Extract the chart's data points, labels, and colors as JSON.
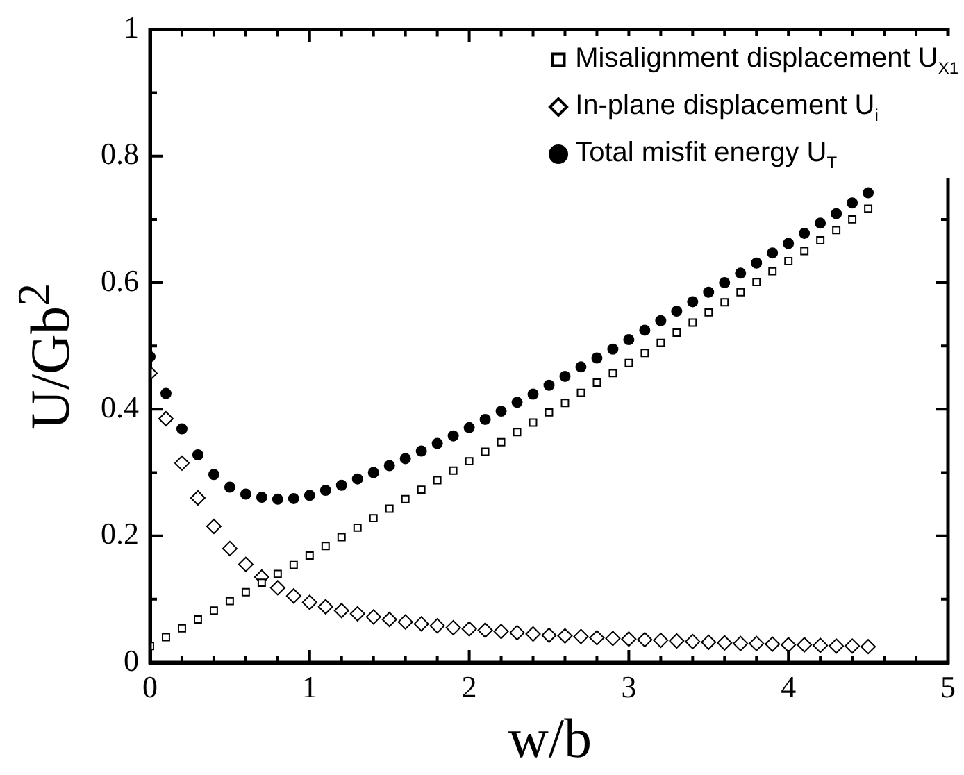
{
  "chart_data": {
    "type": "scatter",
    "xlabel": "w/b",
    "ylabel": "U/Gb$^{2}$",
    "x": [
      0,
      0.1,
      0.2,
      0.3,
      0.4,
      0.5,
      0.6,
      0.7,
      0.8,
      0.9,
      1.0,
      1.1,
      1.2,
      1.3,
      1.4,
      1.5,
      1.6,
      1.7,
      1.8,
      1.9,
      2.0,
      2.1,
      2.2,
      2.3,
      2.4,
      2.5,
      2.6,
      2.7,
      2.8,
      2.9,
      3.0,
      3.1,
      3.2,
      3.3,
      3.4,
      3.5,
      3.6,
      3.7,
      3.8,
      3.9,
      4.0,
      4.1,
      4.2,
      4.3,
      4.4,
      4.5
    ],
    "series": [
      {
        "name": "Misalignment displacement U$_{X1}$",
        "color": "#000000",
        "marker": "square",
        "values": [
          0.026,
          0.04,
          0.054,
          0.068,
          0.082,
          0.097,
          0.111,
          0.126,
          0.14,
          0.154,
          0.169,
          0.184,
          0.198,
          0.213,
          0.228,
          0.243,
          0.258,
          0.273,
          0.288,
          0.303,
          0.318,
          0.333,
          0.348,
          0.364,
          0.379,
          0.395,
          0.41,
          0.426,
          0.442,
          0.457,
          0.473,
          0.489,
          0.505,
          0.521,
          0.537,
          0.553,
          0.569,
          0.585,
          0.601,
          0.618,
          0.634,
          0.65,
          0.667,
          0.683,
          0.7,
          0.717
        ]
      },
      {
        "name": "In-plane displacement U$_{i}$",
        "color": "#000000",
        "marker": "diamond",
        "values": [
          0.457,
          0.385,
          0.315,
          0.26,
          0.215,
          0.18,
          0.155,
          0.135,
          0.118,
          0.105,
          0.095,
          0.088,
          0.082,
          0.077,
          0.072,
          0.068,
          0.064,
          0.061,
          0.058,
          0.055,
          0.053,
          0.051,
          0.049,
          0.047,
          0.045,
          0.043,
          0.042,
          0.041,
          0.039,
          0.038,
          0.037,
          0.036,
          0.035,
          0.034,
          0.033,
          0.032,
          0.031,
          0.03,
          0.03,
          0.029,
          0.028,
          0.028,
          0.027,
          0.026,
          0.026,
          0.025
        ]
      },
      {
        "name": "Total misfit energy U$_{T}$",
        "color": "#000000",
        "marker": "circle",
        "values": [
          0.483,
          0.425,
          0.369,
          0.328,
          0.297,
          0.277,
          0.266,
          0.261,
          0.258,
          0.259,
          0.264,
          0.272,
          0.28,
          0.29,
          0.3,
          0.311,
          0.322,
          0.334,
          0.346,
          0.358,
          0.371,
          0.384,
          0.397,
          0.411,
          0.424,
          0.438,
          0.452,
          0.467,
          0.481,
          0.495,
          0.51,
          0.525,
          0.54,
          0.555,
          0.57,
          0.585,
          0.6,
          0.615,
          0.631,
          0.647,
          0.662,
          0.678,
          0.694,
          0.709,
          0.726,
          0.742
        ]
      }
    ],
    "xlim": [
      0,
      5
    ],
    "xticks": [
      0,
      {
        "value": 0.2,
        "label": null
      },
      {
        "value": 0.4,
        "label": null
      },
      {
        "value": 0.6,
        "label": null
      },
      {
        "value": 0.8,
        "label": null
      },
      1,
      {
        "value": 1.2,
        "label": null
      },
      {
        "value": 1.4,
        "label": null
      },
      {
        "value": 1.6,
        "label": null
      },
      {
        "value": 1.8,
        "label": null
      },
      2,
      {
        "value": 2.2,
        "label": null
      },
      {
        "value": 2.4,
        "label": null
      },
      {
        "value": 2.6,
        "label": null
      },
      {
        "value": 2.8,
        "label": null
      },
      3,
      {
        "value": 3.2,
        "label": null
      },
      {
        "value": 3.4,
        "label": null
      },
      {
        "value": 3.6,
        "label": null
      },
      {
        "value": 3.8,
        "label": null
      },
      4,
      {
        "value": 4.2,
        "label": null
      },
      {
        "value": 4.4,
        "label": null
      },
      {
        "value": 4.6,
        "label": null
      },
      {
        "value": 4.8,
        "label": null
      },
      5
    ],
    "ylim": [
      0,
      1
    ],
    "yticks": [
      0,
      {
        "value": 0.1,
        "label": null
      },
      0.2,
      {
        "value": 0.3,
        "label": null
      },
      0.4,
      {
        "value": 0.5,
        "label": null
      },
      0.6,
      {
        "value": 0.7,
        "label": null
      },
      0.8,
      {
        "value": 0.9,
        "label": null
      },
      1
    ],
    "grid": false,
    "legend": "top right"
  }
}
